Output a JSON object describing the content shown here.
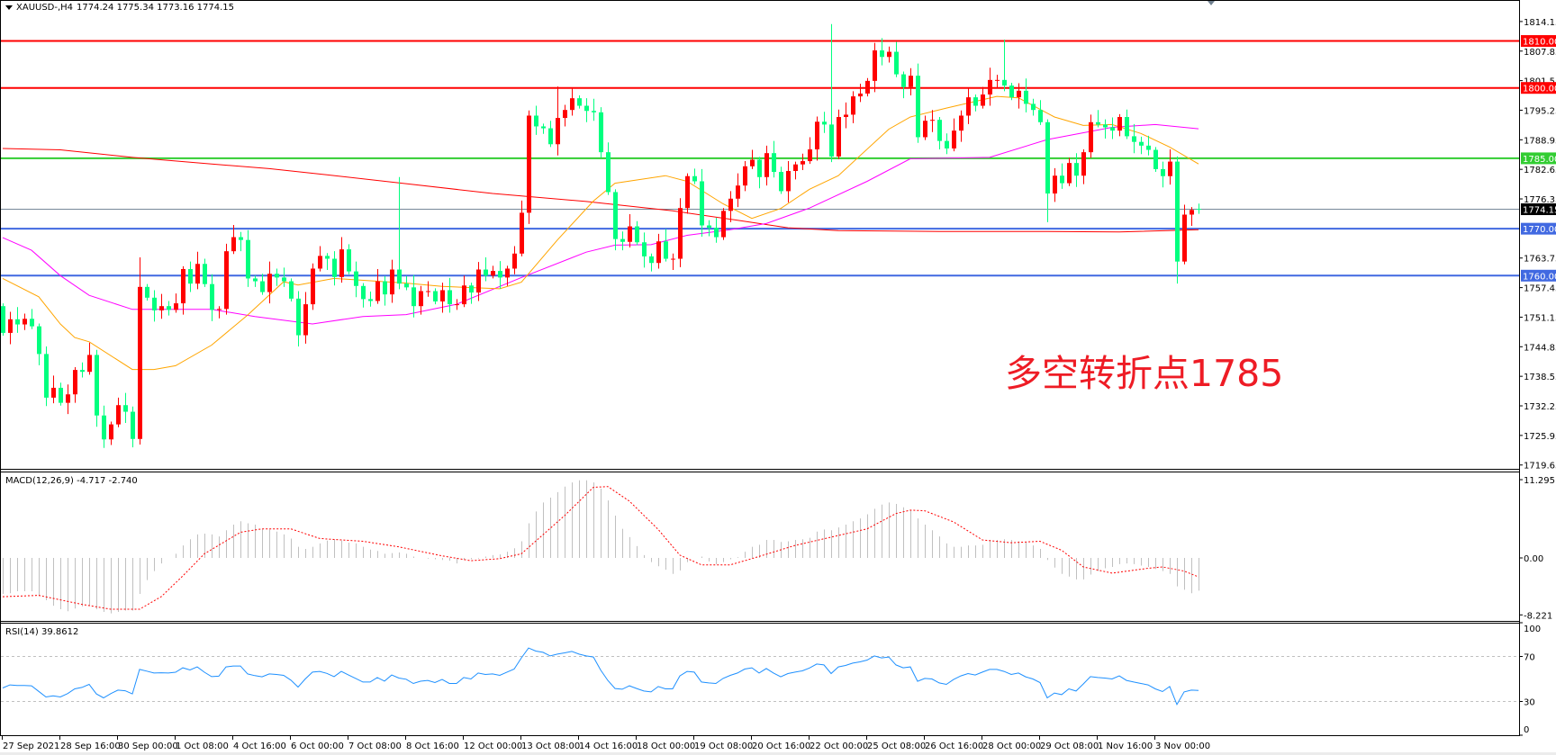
{
  "header": {
    "title": "XAUUSD-,H4",
    "ohlc": "1774.24 1775.34 1773.16 1774.15"
  },
  "annotation": {
    "text": "多空转折点1785"
  },
  "indicators": {
    "macd_label": "MACD(12,26,9) -4.717 -2.740",
    "rsi_label": "RSI(14) 39.8612"
  },
  "colors": {
    "up_candle": "#ff0000",
    "down_candle": "#00ff7f",
    "ma_fast": "#ffa500",
    "ma_mid": "#ff00ff",
    "ma_slow": "#ff0000",
    "macd_hist": "#c0c0c0",
    "macd_signal": "#ff0000",
    "rsi_line": "#1e90ff"
  },
  "chart_data": {
    "type": "candlestick",
    "symbol": "XAUUSD-",
    "timeframe": "H4",
    "price_range": [
      1719.65,
      1814.15
    ],
    "last": {
      "open": 1774.24,
      "high": 1775.34,
      "low": 1773.16,
      "close": 1774.15
    },
    "open_first": 1753.5,
    "closes": [
      1747.8,
      1750.7,
      1749.6,
      1750.8,
      1749.2,
      1743.3,
      1734.0,
      1736.1,
      1732.9,
      1734.7,
      1739.9,
      1739.5,
      1743.1,
      1730.2,
      1725.1,
      1728.3,
      1732.4,
      1731.0,
      1725.2,
      1757.6,
      1755.3,
      1752.6,
      1753.5,
      1752.7,
      1754.1,
      1761.4,
      1758.3,
      1762.5,
      1758.2,
      1752.7,
      1752.9,
      1765.2,
      1768.2,
      1767.6,
      1759.4,
      1758.8,
      1756.5,
      1760.4,
      1759.6,
      1758.8,
      1755.1,
      1747.3,
      1753.9,
      1761.5,
      1764.2,
      1763.6,
      1759.7,
      1765.6,
      1760.9,
      1757.8,
      1755.0,
      1754.6,
      1758.8,
      1756.0,
      1761.3,
      1758.3,
      1757.5,
      1753.5,
      1756.7,
      1756.7,
      1754.5,
      1756.9,
      1753.9,
      1753.9,
      1757.9,
      1756.4,
      1761.3,
      1760.0,
      1761.0,
      1759.6,
      1761.5,
      1764.7,
      1773.4,
      1794.1,
      1791.8,
      1791.4,
      1788.0,
      1793.6,
      1795.3,
      1797.8,
      1796.2,
      1795.1,
      1794.8,
      1786.3,
      1777.8,
      1767.8,
      1767.2,
      1770.5,
      1767.1,
      1764.1,
      1762.7,
      1767.3,
      1763.6,
      1763.6,
      1774.4,
      1781.2,
      1780.1,
      1770.7,
      1770.2,
      1768.2,
      1773.8,
      1776.4,
      1779.2,
      1783.3,
      1784.7,
      1781.0,
      1786.1,
      1782.1,
      1778.0,
      1782.3,
      1783.7,
      1784.4,
      1786.9,
      1792.8,
      1792.2,
      1785.4,
      1793.8,
      1794.3,
      1798.2,
      1798.8,
      1801.5,
      1808.0,
      1806.6,
      1807.7,
      1802.9,
      1800.2,
      1802.6,
      1789.5,
      1793.0,
      1793.2,
      1788.7,
      1787.1,
      1790.9,
      1794.1,
      1798.0,
      1796.2,
      1798.6,
      1801.7,
      1801.7,
      1800.5,
      1798.0,
      1799.4,
      1796.6,
      1795.3,
      1792.7,
      1777.5,
      1781.3,
      1779.7,
      1784.0,
      1781.3,
      1786.3,
      1792.7,
      1792.2,
      1791.6,
      1790.9,
      1793.8,
      1789.7,
      1788.5,
      1787.7,
      1786.8,
      1782.7,
      1781.2,
      1784.3,
      1763.0,
      1773.0,
      1774.0,
      1774.15
    ],
    "notable_wicks": [
      {
        "bar": 19,
        "high": 1763.9
      },
      {
        "bar": 55,
        "high": 1781.0
      },
      {
        "bar": 77,
        "high": 1800.3
      },
      {
        "bar": 115,
        "high": 1813.6
      },
      {
        "bar": 139,
        "high": 1810.3
      },
      {
        "bar": 145,
        "low": 1771.4
      },
      {
        "bar": 163,
        "low": 1758.3
      }
    ],
    "moving_averages": {
      "fast_orange": [
        [
          0,
          1759.4
        ],
        [
          5,
          1755.5
        ],
        [
          8,
          1749.7
        ],
        [
          10,
          1746.8
        ],
        [
          12,
          1745.9
        ],
        [
          18,
          1740.0
        ],
        [
          21,
          1740.0
        ],
        [
          24,
          1740.8
        ],
        [
          29,
          1745.2
        ],
        [
          34,
          1751.6
        ],
        [
          39,
          1758.7
        ],
        [
          41,
          1758.0
        ],
        [
          46,
          1759.4
        ],
        [
          56,
          1758.4
        ],
        [
          61,
          1757.7
        ],
        [
          69,
          1757.2
        ],
        [
          72,
          1758.6
        ],
        [
          77,
          1767.6
        ],
        [
          82,
          1775.9
        ],
        [
          85,
          1779.7
        ],
        [
          92,
          1781.3
        ],
        [
          95,
          1780.1
        ],
        [
          100,
          1775.3
        ],
        [
          104,
          1772.2
        ],
        [
          108,
          1774.3
        ],
        [
          112,
          1778.4
        ],
        [
          116,
          1781.3
        ],
        [
          123,
          1791.2
        ],
        [
          126,
          1793.8
        ],
        [
          131,
          1795.7
        ],
        [
          138,
          1798.2
        ],
        [
          141,
          1797.9
        ],
        [
          146,
          1793.8
        ],
        [
          150,
          1792.0
        ],
        [
          154,
          1792.2
        ],
        [
          158,
          1790.3
        ],
        [
          162,
          1787.4
        ],
        [
          166,
          1783.8
        ]
      ],
      "mid_magenta": [
        [
          0,
          1768.1
        ],
        [
          4,
          1765.4
        ],
        [
          8,
          1760.0
        ],
        [
          12,
          1755.8
        ],
        [
          18,
          1752.8
        ],
        [
          29,
          1752.8
        ],
        [
          35,
          1751.3
        ],
        [
          43,
          1749.7
        ],
        [
          50,
          1751.3
        ],
        [
          56,
          1751.7
        ],
        [
          63,
          1753.9
        ],
        [
          72,
          1759.6
        ],
        [
          81,
          1765.0
        ],
        [
          85,
          1766.5
        ],
        [
          90,
          1766.6
        ],
        [
          95,
          1768.6
        ],
        [
          101,
          1769.8
        ],
        [
          106,
          1771.1
        ],
        [
          112,
          1774.4
        ],
        [
          120,
          1780.1
        ],
        [
          126,
          1784.9
        ],
        [
          137,
          1785.2
        ],
        [
          145,
          1789.0
        ],
        [
          154,
          1791.6
        ],
        [
          160,
          1792.2
        ],
        [
          166,
          1791.3
        ]
      ],
      "slow_red": [
        [
          0,
          1787.1
        ],
        [
          8,
          1786.8
        ],
        [
          18,
          1785.2
        ],
        [
          29,
          1783.8
        ],
        [
          37,
          1782.8
        ],
        [
          45,
          1781.5
        ],
        [
          56,
          1779.6
        ],
        [
          68,
          1777.5
        ],
        [
          81,
          1775.8
        ],
        [
          93,
          1773.8
        ],
        [
          102,
          1771.8
        ],
        [
          109,
          1770.2
        ],
        [
          116,
          1769.6
        ],
        [
          130,
          1769.4
        ],
        [
          145,
          1769.4
        ],
        [
          155,
          1769.3
        ],
        [
          166,
          1769.8
        ]
      ]
    },
    "horizontal_lines": [
      {
        "value": "1810.00",
        "color": "#ff0000"
      },
      {
        "value": "1800.00",
        "color": "#ff0000"
      },
      {
        "value": "1785.00",
        "color": "#32cd32"
      },
      {
        "value": "1774.15",
        "color": "#000000",
        "line_color": "#778899"
      },
      {
        "value": "1770.00",
        "color": "#4169e1"
      },
      {
        "value": "1760.00",
        "color": "#4169e1"
      }
    ],
    "price_axis": {
      "ticks": [
        "1814.15",
        "1807.85",
        "1801.55",
        "1795.25",
        "1788.95",
        "1782.65",
        "1776.35",
        "1763.75",
        "1757.45",
        "1751.15",
        "1744.85",
        "1738.55",
        "1732.25",
        "1725.95",
        "1719.65"
      ]
    },
    "time_axis": {
      "labels": [
        "27 Sep 2021",
        "28 Sep 16:00",
        "30 Sep 00:00",
        "1 Oct 08:00",
        "4 Oct 16:00",
        "6 Oct 00:00",
        "7 Oct 08:00",
        "8 Oct 16:00",
        "12 Oct 00:00",
        "13 Oct 08:00",
        "14 Oct 16:00",
        "18 Oct 00:00",
        "19 Oct 08:00",
        "20 Oct 16:00",
        "22 Oct 00:00",
        "25 Oct 08:00",
        "26 Oct 16:00",
        "28 Oct 00:00",
        "29 Oct 08:00",
        "1 Nov 16:00",
        "3 Nov 00:00"
      ],
      "bars_per_label": 8
    },
    "macd": {
      "params": "12,26,9",
      "range": [
        -8.221,
        11.295
      ],
      "axis_ticks": [
        "11.295",
        "0.00",
        "-8.221"
      ],
      "main": [
        -5.2,
        -5.1,
        -4.8,
        -4.8,
        -4.8,
        -5.5,
        -6.1,
        -6.9,
        -7.4,
        -7.7,
        -7.3,
        -7.0,
        -6.9,
        -7.4,
        -7.8,
        -8.0,
        -7.8,
        -7.6,
        -7.6,
        -5.2,
        -3.2,
        -1.9,
        -0.8,
        0.0,
        0.6,
        1.8,
        2.7,
        3.4,
        3.5,
        3.4,
        3.1,
        4.0,
        4.8,
        5.3,
        5.0,
        4.8,
        4.2,
        4.1,
        3.8,
        3.4,
        2.8,
        1.6,
        1.3,
        1.6,
        2.1,
        2.5,
        2.7,
        2.5,
        2.2,
        2.1,
        1.6,
        1.2,
        1.0,
        0.6,
        0.7,
        0.8,
        0.6,
        0.2,
        0.0,
        -0.1,
        -0.2,
        -0.3,
        -0.4,
        -0.8,
        -0.3,
        -0.2,
        -0.1,
        0.2,
        0.4,
        0.5,
        0.9,
        1.4,
        2.4,
        5.0,
        6.7,
        8.0,
        8.7,
        9.5,
        10.3,
        10.9,
        11.2,
        11.2,
        10.9,
        10.0,
        8.3,
        6.1,
        4.2,
        3.0,
        1.7,
        0.4,
        -0.6,
        -1.2,
        -1.7,
        -2.3,
        -1.8,
        -0.6,
        0.0,
        0.2,
        -0.5,
        -0.9,
        -0.6,
        -0.2,
        0.1,
        0.9,
        1.6,
        1.9,
        2.6,
        2.6,
        2.3,
        2.4,
        2.6,
        2.7,
        2.9,
        3.8,
        4.1,
        4.0,
        4.4,
        4.8,
        5.3,
        5.7,
        6.3,
        7.1,
        7.7,
        8.0,
        7.8,
        7.3,
        6.9,
        5.7,
        4.8,
        4.0,
        3.1,
        2.1,
        1.6,
        1.6,
        1.8,
        1.8,
        1.9,
        2.6,
        2.6,
        2.7,
        2.6,
        2.4,
        2.3,
        1.8,
        1.3,
        -0.3,
        -1.4,
        -2.3,
        -2.7,
        -3.1,
        -3.1,
        -2.4,
        -1.9,
        -1.5,
        -1.3,
        -0.9,
        -0.8,
        -0.9,
        -1.1,
        -1.3,
        -1.6,
        -1.9,
        -2.3,
        -4.1,
        -4.6,
        -5.1,
        -4.717
      ],
      "signal": [
        [
          0,
          -5.6
        ],
        [
          5,
          -5.4
        ],
        [
          11,
          -6.7
        ],
        [
          15,
          -7.4
        ],
        [
          19,
          -7.4
        ],
        [
          22,
          -5.6
        ],
        [
          25,
          -2.6
        ],
        [
          28,
          0.6
        ],
        [
          33,
          3.7
        ],
        [
          36,
          4.2
        ],
        [
          40,
          4.2
        ],
        [
          44,
          2.8
        ],
        [
          50,
          2.4
        ],
        [
          55,
          1.6
        ],
        [
          61,
          0.3
        ],
        [
          65,
          -0.4
        ],
        [
          69,
          -0.1
        ],
        [
          72,
          0.6
        ],
        [
          78,
          6.1
        ],
        [
          82,
          10.2
        ],
        [
          84,
          10.3
        ],
        [
          87,
          8.2
        ],
        [
          91,
          4.1
        ],
        [
          94,
          0.4
        ],
        [
          97,
          -1.0
        ],
        [
          101,
          -1.0
        ],
        [
          104,
          -0.1
        ],
        [
          110,
          1.8
        ],
        [
          115,
          3.0
        ],
        [
          120,
          4.2
        ],
        [
          124,
          6.4
        ],
        [
          126,
          6.9
        ],
        [
          128,
          6.8
        ],
        [
          132,
          5.2
        ],
        [
          136,
          2.6
        ],
        [
          140,
          2.2
        ],
        [
          144,
          2.4
        ],
        [
          147,
          1.1
        ],
        [
          150,
          -1.3
        ],
        [
          154,
          -2.2
        ],
        [
          159,
          -1.5
        ],
        [
          161,
          -1.3
        ],
        [
          164,
          -1.9
        ],
        [
          166,
          -2.74
        ]
      ]
    },
    "rsi": {
      "period": 14,
      "range": [
        0,
        100
      ],
      "levels": [
        70,
        30
      ],
      "axis_ticks": [
        "100",
        "70",
        "30",
        "0"
      ],
      "values": [
        42,
        44.7,
        44.2,
        44.2,
        43.9,
        39,
        34,
        35,
        34,
        37,
        41.2,
        42.5,
        45.2,
        36.7,
        33.2,
        37,
        40.1,
        39.5,
        36.7,
        58.5,
        57,
        55.3,
        55.5,
        55.3,
        56,
        59.9,
        58,
        60.7,
        56,
        52.1,
        52.5,
        60.7,
        61.5,
        61.5,
        54.5,
        53,
        51.9,
        54.5,
        54,
        53.2,
        49,
        42.8,
        50,
        56.1,
        56.7,
        55,
        52.1,
        56.7,
        53.5,
        50.5,
        47.3,
        47.3,
        51.3,
        48.1,
        53.5,
        50.8,
        49.8,
        46,
        48,
        48.7,
        46.8,
        49.5,
        46,
        46,
        51.3,
        50,
        55.3,
        54,
        54.5,
        53.2,
        56.1,
        58.8,
        68.7,
        77.5,
        74.8,
        73.7,
        70.5,
        72.1,
        73.2,
        74.5,
        72.1,
        70.5,
        69.5,
        58,
        48.7,
        41.5,
        40.9,
        43.9,
        41.5,
        39.3,
        38.5,
        43.3,
        41.2,
        41.2,
        52.7,
        56.7,
        56.1,
        47.3,
        46.5,
        46,
        50.5,
        53.2,
        55.3,
        58.8,
        59.9,
        55.3,
        59.3,
        55.3,
        51.9,
        54.8,
        56.1,
        57.2,
        59.8,
        63.3,
        62.5,
        54.8,
        60.7,
        62,
        64.1,
        65.2,
        66.8,
        70.5,
        68.7,
        69.5,
        62.5,
        59.9,
        60.7,
        47.9,
        50.5,
        50,
        46.5,
        45.2,
        49.5,
        52.7,
        54.8,
        53.5,
        56.1,
        58.5,
        58.5,
        56.7,
        54,
        55.3,
        51.9,
        50,
        46.8,
        33.2,
        37.5,
        36.1,
        41.2,
        39.3,
        45.5,
        52.1,
        51.3,
        50.8,
        50,
        52.7,
        48.7,
        47.3,
        46,
        44.7,
        41.2,
        38.8,
        43.3,
        27.3,
        38.5,
        40.1,
        39.8612
      ]
    }
  }
}
